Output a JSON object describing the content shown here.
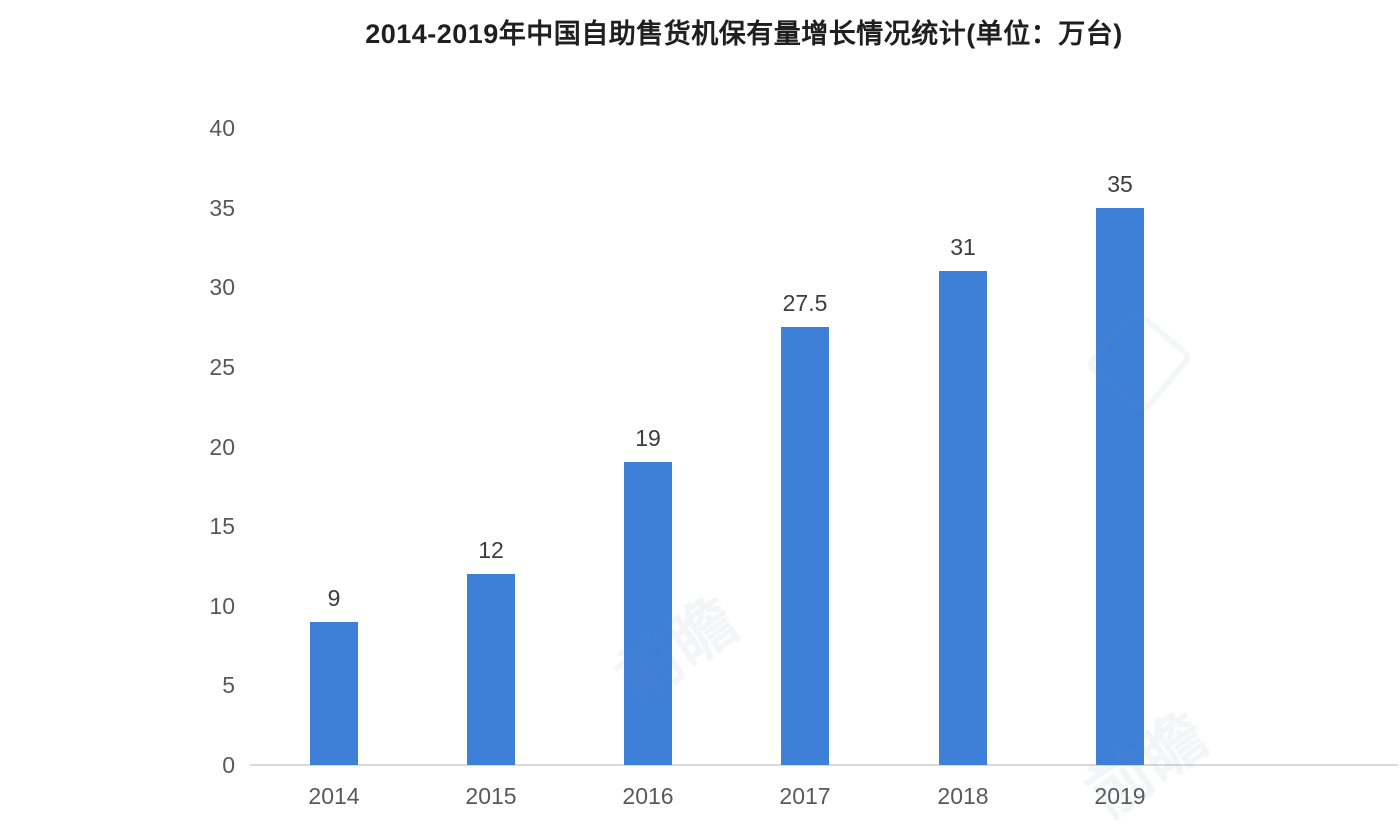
{
  "chart_data": {
    "type": "bar",
    "title": "2014-2019年中国自助售货机保有量增长情况统计(单位：万台)",
    "categories": [
      "2014",
      "2015",
      "2016",
      "2017",
      "2018",
      "2019"
    ],
    "values": [
      9,
      12,
      19,
      27.5,
      31,
      35
    ],
    "value_labels": [
      "9",
      "12",
      "19",
      "27.5",
      "31",
      "35"
    ],
    "xlabel": "",
    "ylabel": "",
    "ylim": [
      0,
      40
    ],
    "yticks": [
      0,
      5,
      10,
      15,
      20,
      25,
      30,
      35,
      40
    ],
    "grid": false,
    "legend": null,
    "bar_color": "#3E80D8",
    "axis_line_color": "#D9D9D9",
    "tick_label_color": "#595959",
    "value_label_color": "#3D3D3D",
    "title_color": "#1F1F1F"
  },
  "watermark": {
    "text": "前瞻"
  }
}
